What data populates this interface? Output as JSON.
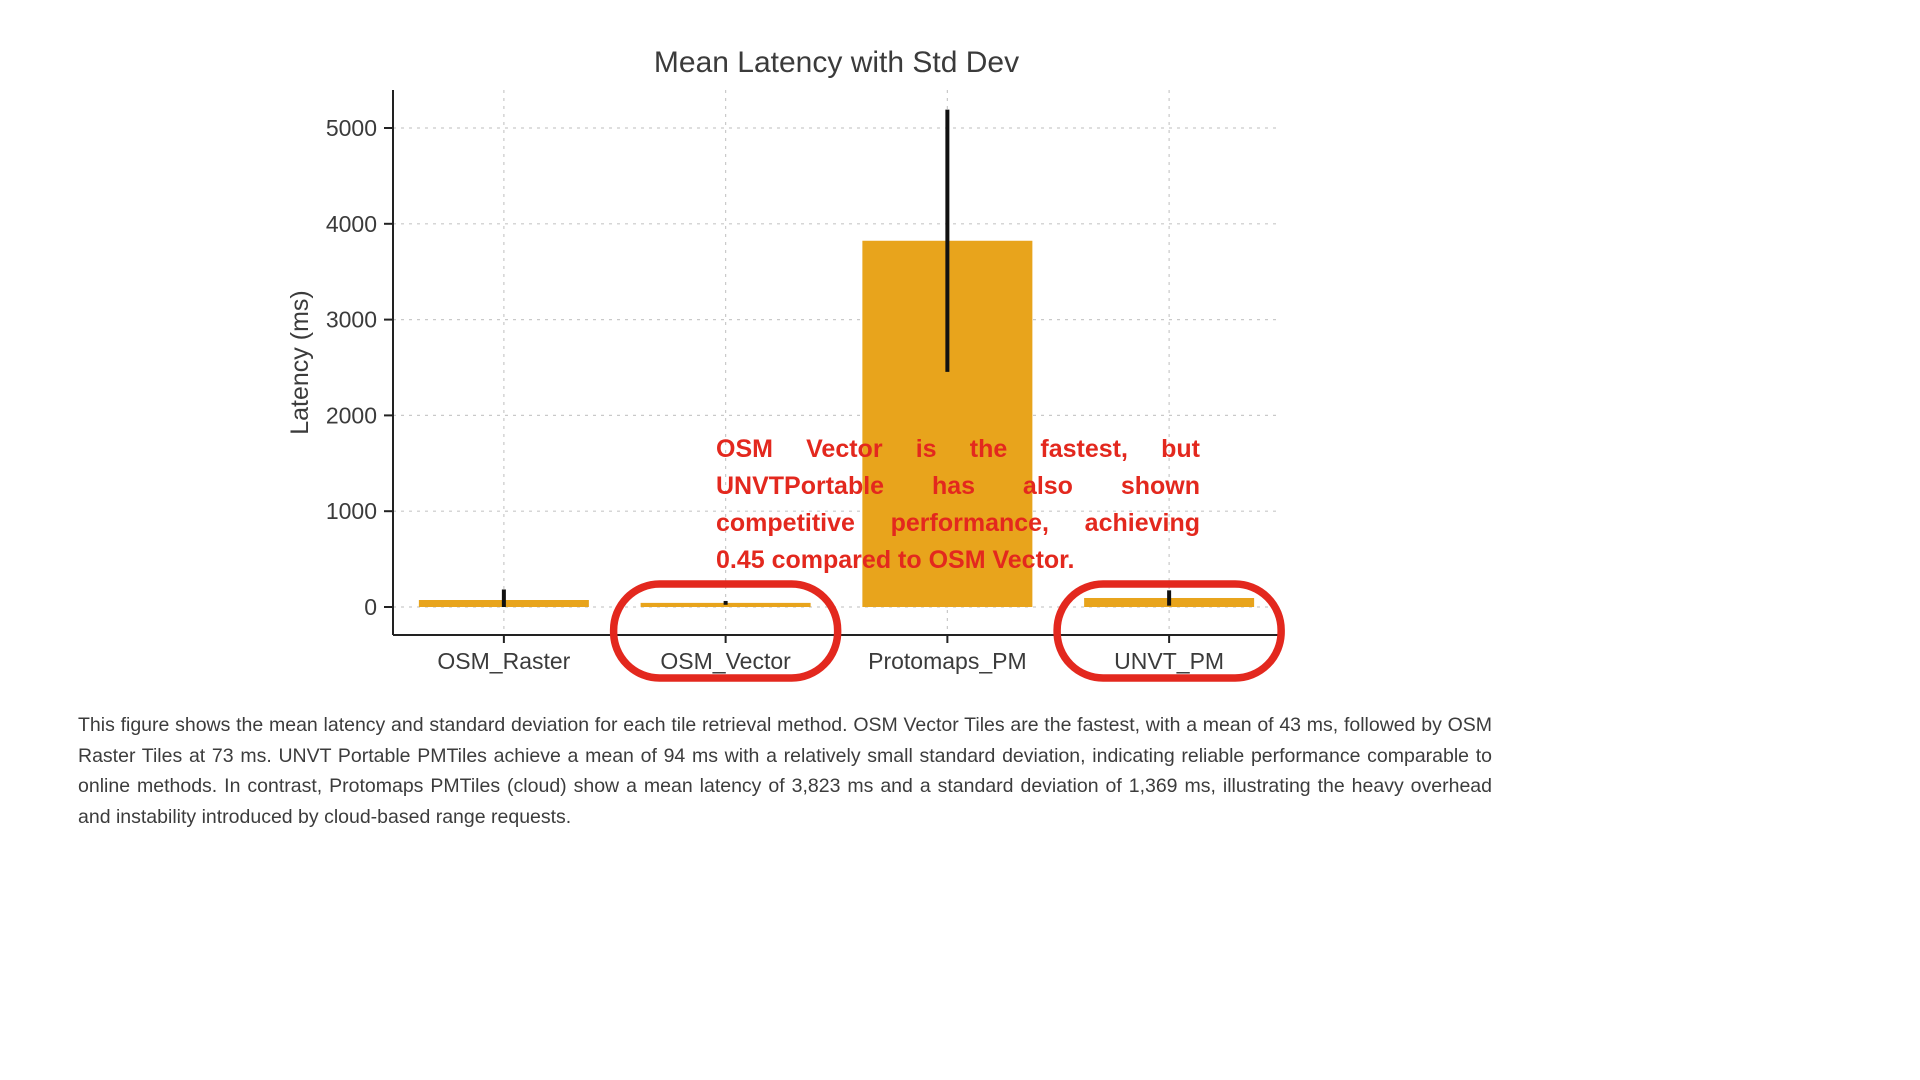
{
  "chart_data": {
    "type": "bar",
    "title": "Mean Latency with Std Dev",
    "xlabel": "",
    "ylabel": "Latency (ms)",
    "categories": [
      "OSM_Raster",
      "OSM_Vector",
      "Protomaps_PM",
      "UNVT_PM"
    ],
    "values": [
      73,
      43,
      3823,
      94
    ],
    "errors": [
      110,
      20,
      1369,
      80
    ],
    "ylim": [
      0,
      5400
    ],
    "yticks": [
      0,
      1000,
      2000,
      3000,
      4000,
      5000
    ],
    "grid": true,
    "legend": "none",
    "bar_color": "#E8A41C",
    "error_color": "#111111",
    "grid_color": "#c9c9c9",
    "axis_color": "#222222",
    "text_color": "#3b3b3b",
    "highlighted_categories": [
      "OSM_Vector",
      "UNVT_PM"
    ],
    "highlight_color": "#E3281E"
  },
  "annotation": {
    "color": "#E3281E",
    "lines": [
      "OSM Vector is the fastest, but",
      "UNVTPortable has also shown",
      "competitive performance, achieving",
      "0.45 compared to OSM Vector."
    ]
  },
  "caption": {
    "text": "This figure shows the mean latency and standard deviation for each tile retrieval method.  OSM Vector Tiles are the fastest, with a mean of 43 ms, followed by OSM Raster Tiles at 73 ms.  UNVT Portable PMTiles achieve a mean of 94 ms with a relatively small standard deviation, indicating reliable performance comparable to online methods.  In contrast, Protomaps PMTiles (cloud) show a mean latency of 3,823 ms and a standard deviation of 1,369 ms, illustrating the heavy overhead and instability introduced by cloud-based range requests."
  }
}
